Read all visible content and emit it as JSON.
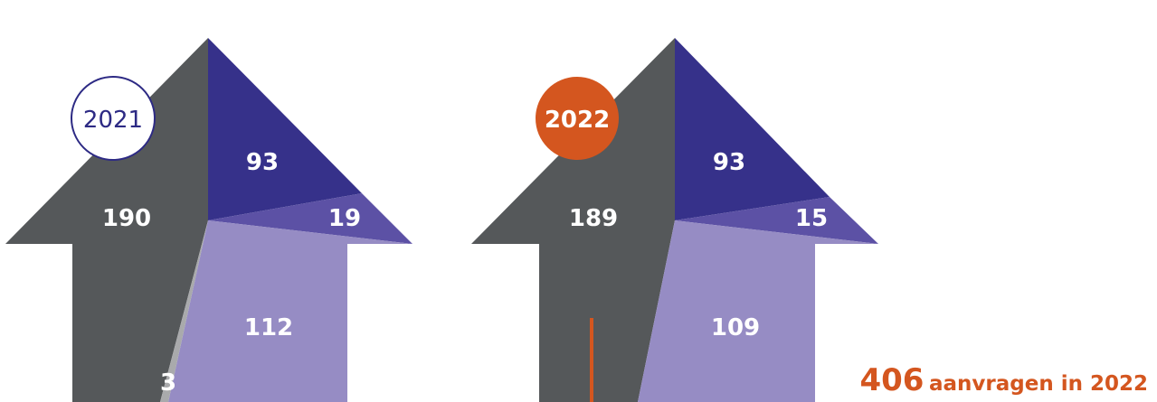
{
  "chart_data": [
    {
      "type": "pie",
      "year_label": "2021",
      "slices": [
        {
          "value": 190,
          "color": "#55585a"
        },
        {
          "value": 93,
          "color": "#36318a"
        },
        {
          "value": 19,
          "color": "#5c51a5"
        },
        {
          "value": 112,
          "color": "#968cc4"
        },
        {
          "value": 3,
          "color": "#a9aaac"
        }
      ]
    },
    {
      "type": "pie",
      "year_label": "2022",
      "slices": [
        {
          "value": 189,
          "color": "#55585a"
        },
        {
          "value": 93,
          "color": "#36318a"
        },
        {
          "value": 15,
          "color": "#5c51a5"
        },
        {
          "value": 109,
          "color": "#968cc4"
        }
      ]
    }
  ],
  "total": {
    "number": "406",
    "text": "aanvragen in 2022"
  },
  "colors": {
    "accent": "#d4561f",
    "year_2021_text": "#2d2a84",
    "year_2021_fill": "#ffffff",
    "year_2022_fill": "#d4561f",
    "year_2022_text": "#ffffff"
  }
}
